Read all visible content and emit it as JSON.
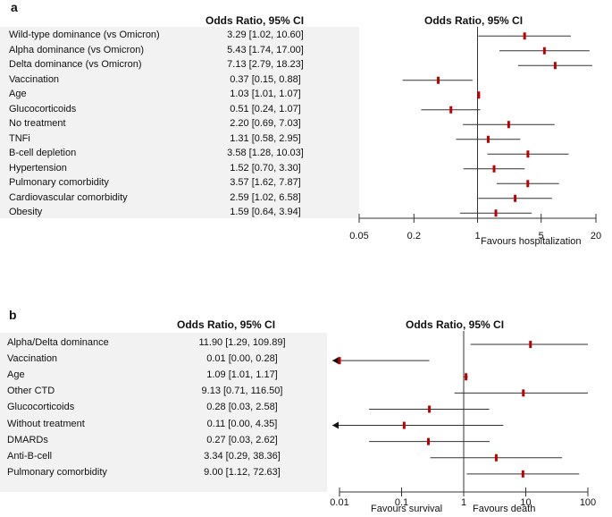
{
  "chart_data": [
    {
      "type": "forest",
      "panel_label": "a",
      "header_left": "Odds Ratio, 95% CI",
      "header_right": "Odds Ratio, 95% CI",
      "xscale": "log",
      "xlim": [
        0.05,
        20
      ],
      "xticks": [
        "0.05",
        "0.2",
        "1",
        "5",
        "20"
      ],
      "xtick_values": [
        0.05,
        0.2,
        1,
        5,
        20
      ],
      "annotation_right": "Favours hospitalization",
      "rows": [
        {
          "label": "Wild-type dominance (vs Omicron)",
          "ci_text": "3.29 [1.02, 10.60]",
          "or": 3.29,
          "lo": 1.02,
          "hi": 10.6
        },
        {
          "label": "Alpha dominance (vs Omicron)",
          "ci_text": "5.43 [1.74, 17.00]",
          "or": 5.43,
          "lo": 1.74,
          "hi": 17.0
        },
        {
          "label": "Delta dominance (vs Omicron)",
          "ci_text": "7.13 [2.79, 18.23]",
          "or": 7.13,
          "lo": 2.79,
          "hi": 18.23
        },
        {
          "label": "Vaccination",
          "ci_text": "0.37 [0.15, 0.88]",
          "or": 0.37,
          "lo": 0.15,
          "hi": 0.88
        },
        {
          "label": "Age",
          "ci_text": "1.03 [1.01, 1.07]",
          "or": 1.03,
          "lo": 1.01,
          "hi": 1.07
        },
        {
          "label": "Glucocorticoids",
          "ci_text": "0.51 [0.24, 1.07]",
          "or": 0.51,
          "lo": 0.24,
          "hi": 1.07
        },
        {
          "label": "No treatment",
          "ci_text": "2.20 [0.69, 7.03]",
          "or": 2.2,
          "lo": 0.69,
          "hi": 7.03
        },
        {
          "label": "TNFi",
          "ci_text": "1.31 [0.58, 2.95]",
          "or": 1.31,
          "lo": 0.58,
          "hi": 2.95
        },
        {
          "label": "B-cell depletion",
          "ci_text": "3.58 [1.28, 10.03]",
          "or": 3.58,
          "lo": 1.28,
          "hi": 10.03
        },
        {
          "label": "Hypertension",
          "ci_text": "1.52 [0.70, 3.30]",
          "or": 1.52,
          "lo": 0.7,
          "hi": 3.3
        },
        {
          "label": "Pulmonary comorbidity",
          "ci_text": "3.57 [1.62, 7.87]",
          "or": 3.57,
          "lo": 1.62,
          "hi": 7.87
        },
        {
          "label": "Cardiovascular comorbidity",
          "ci_text": "2.59 [1.02, 6.58]",
          "or": 2.59,
          "lo": 1.02,
          "hi": 6.58
        },
        {
          "label": "Obesity",
          "ci_text": "1.59 [0.64, 3.94]",
          "or": 1.59,
          "lo": 0.64,
          "hi": 3.94
        }
      ]
    },
    {
      "type": "forest",
      "panel_label": "b",
      "header_left": "Odds Ratio, 95% CI",
      "header_right": "Odds Ratio, 95% CI",
      "xscale": "log",
      "xlim": [
        0.01,
        100
      ],
      "xticks": [
        "0.01",
        "0.1",
        "1",
        "10",
        "100"
      ],
      "xtick_values": [
        0.01,
        0.1,
        1,
        10,
        100
      ],
      "annotation_left": "Favours survival",
      "annotation_right": "Favours death",
      "rows": [
        {
          "label": "Alpha/Delta dominance",
          "ci_text": "11.90 [1.29, 109.89]",
          "or": 11.9,
          "lo": 1.29,
          "hi": 109.89
        },
        {
          "label": "Vaccination",
          "ci_text": "0.01 [0.00, 0.28]",
          "or": 0.01,
          "lo": 0.0,
          "hi": 0.28,
          "arrow_left": true
        },
        {
          "label": "Age",
          "ci_text": "1.09 [1.01, 1.17]",
          "or": 1.09,
          "lo": 1.01,
          "hi": 1.17
        },
        {
          "label": "Other CTD",
          "ci_text": "9.13 [0.71, 116.50]",
          "or": 9.13,
          "lo": 0.71,
          "hi": 116.5
        },
        {
          "label": "Glucocorticoids",
          "ci_text": "0.28 [0.03, 2.58]",
          "or": 0.28,
          "lo": 0.03,
          "hi": 2.58
        },
        {
          "label": "Without treatment",
          "ci_text": "0.11 [0.00, 4.35]",
          "or": 0.11,
          "lo": 0.0,
          "hi": 4.35,
          "arrow_left": true
        },
        {
          "label": "DMARDs",
          "ci_text": "0.27 [0.03, 2.62]",
          "or": 0.27,
          "lo": 0.03,
          "hi": 2.62
        },
        {
          "label": "Anti-B-cell",
          "ci_text": "3.34 [0.29, 38.36]",
          "or": 3.34,
          "lo": 0.29,
          "hi": 38.36
        },
        {
          "label": "Pulmonary comorbidity",
          "ci_text": "9.00 [1.12, 72.63]",
          "or": 9.0,
          "lo": 1.12,
          "hi": 72.63
        }
      ]
    }
  ]
}
